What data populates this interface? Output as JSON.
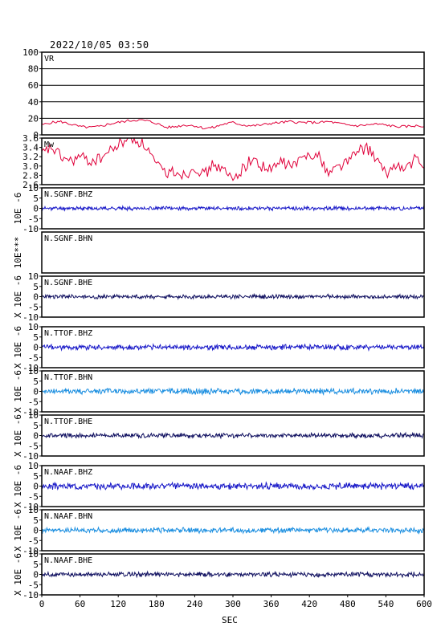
{
  "title": "2022/10/05 03:50",
  "xlabel": "SEC",
  "chart_data": {
    "type": "line",
    "xlim": [
      0,
      600
    ],
    "xticks": [
      0,
      60,
      120,
      180,
      240,
      300,
      360,
      420,
      480,
      540,
      600
    ],
    "panels": [
      {
        "id": "vr",
        "label": "VR",
        "ylabel": "",
        "ylim": [
          0,
          100
        ],
        "yticks": [
          "100",
          "80",
          "60",
          "40",
          "20",
          "0"
        ],
        "grid": true,
        "color": "#e0003a",
        "x": [
          0,
          15,
          30,
          45,
          60,
          75,
          90,
          105,
          120,
          135,
          150,
          165,
          180,
          195,
          210,
          225,
          240,
          255,
          270,
          285,
          300,
          315,
          330,
          345,
          360,
          375,
          390,
          405,
          420,
          435,
          450,
          465,
          480,
          495,
          510,
          525,
          540,
          555,
          570,
          585,
          600
        ],
        "values": [
          12,
          15,
          16,
          13,
          10,
          9,
          10,
          13,
          15,
          17,
          18,
          17,
          14,
          9,
          10,
          12,
          11,
          8,
          9,
          13,
          15,
          12,
          11,
          12,
          14,
          15,
          16,
          15,
          15,
          15,
          16,
          14,
          12,
          11,
          12,
          13,
          12,
          10,
          10,
          11,
          10
        ]
      },
      {
        "id": "mw",
        "label": "Mw",
        "ylabel": "",
        "ylim": [
          2.6,
          3.6
        ],
        "yticks": [
          "3.6",
          "3.4",
          "3.2",
          "3.0",
          "2.8",
          "2.6"
        ],
        "grid": false,
        "color": "#e0003a",
        "x": [
          0,
          15,
          30,
          45,
          60,
          75,
          90,
          105,
          120,
          135,
          150,
          165,
          180,
          195,
          210,
          225,
          240,
          255,
          270,
          285,
          300,
          315,
          330,
          345,
          360,
          375,
          390,
          405,
          420,
          435,
          450,
          465,
          480,
          495,
          510,
          525,
          540,
          555,
          570,
          585,
          600
        ],
        "values": [
          3.25,
          3.4,
          3.2,
          3.1,
          3.2,
          3.1,
          3.15,
          3.3,
          3.45,
          3.6,
          3.55,
          3.4,
          3.0,
          2.85,
          2.9,
          2.8,
          3.0,
          2.8,
          3.05,
          2.9,
          2.7,
          2.95,
          3.15,
          3.0,
          2.9,
          3.1,
          3.0,
          3.1,
          3.3,
          3.2,
          2.85,
          3.0,
          3.1,
          3.3,
          3.4,
          3.15,
          2.8,
          3.05,
          2.9,
          3.15,
          2.95
        ]
      },
      {
        "id": "n-sgnf-bhz",
        "label": "N.SGNF.BHZ",
        "ylabel": "10E -6",
        "ylim": [
          -10,
          10
        ],
        "yticks": [
          "10",
          "5",
          "0",
          "-5",
          "-10"
        ],
        "color": "#1818c8",
        "noise": 0.7,
        "seed": 11
      },
      {
        "id": "n-sgnf-bhn",
        "label": "N.SGNF.BHN",
        "ylabel": "10E***",
        "ylim": [
          -10,
          10
        ],
        "yticks": [],
        "color": "#1818c8",
        "noise": 0,
        "seed": 0
      },
      {
        "id": "n-sgnf-bhe",
        "label": "N.SGNF.BHE",
        "ylabel": "X 10E -6",
        "ylim": [
          -10,
          10
        ],
        "yticks": [
          "10",
          "5",
          "0",
          "-5",
          "-10"
        ],
        "color": "#101060",
        "noise": 0.8,
        "seed": 23
      },
      {
        "id": "n-ttof-bhz",
        "label": "N.TTOF.BHZ",
        "ylabel": "X 10E -6",
        "ylim": [
          -10,
          10
        ],
        "yticks": [
          "10",
          "5",
          "0",
          "-5",
          "-10"
        ],
        "color": "#1818c8",
        "noise": 1.0,
        "seed": 37
      },
      {
        "id": "n-ttof-bhn",
        "label": "N.TTOF.BHN",
        "ylabel": "X 10E -6",
        "ylim": [
          -10,
          10
        ],
        "yticks": [
          "10",
          "5",
          "0",
          "-5",
          "-10"
        ],
        "color": "#1a8ee0",
        "noise": 1.1,
        "seed": 41
      },
      {
        "id": "n-ttof-bhe",
        "label": "N.TTOF.BHE",
        "ylabel": "X 10E -6",
        "ylim": [
          -10,
          10
        ],
        "yticks": [
          "10",
          "5",
          "0",
          "-5",
          "-10"
        ],
        "color": "#101060",
        "noise": 0.9,
        "seed": 53
      },
      {
        "id": "n-naaf-bhz",
        "label": "N.NAAF.BHZ",
        "ylabel": "X 10E -6",
        "ylim": [
          -10,
          10
        ],
        "yticks": [
          "10",
          "5",
          "0",
          "-5",
          "-10"
        ],
        "color": "#1818c8",
        "noise": 1.2,
        "seed": 67
      },
      {
        "id": "n-naaf-bhn",
        "label": "N.NAAF.BHN",
        "ylabel": "X 10E -6",
        "ylim": [
          -10,
          10
        ],
        "yticks": [
          "10",
          "5",
          "0",
          "-5",
          "-10"
        ],
        "color": "#1a8ee0",
        "noise": 1.0,
        "seed": 71
      },
      {
        "id": "n-naaf-bhe",
        "label": "N.NAAF.BHE",
        "ylabel": "X 10E -6",
        "ylim": [
          -10,
          10
        ],
        "yticks": [
          "10",
          "5",
          "0",
          "-5",
          "-10"
        ],
        "color": "#101060",
        "noise": 0.9,
        "seed": 83
      }
    ]
  }
}
